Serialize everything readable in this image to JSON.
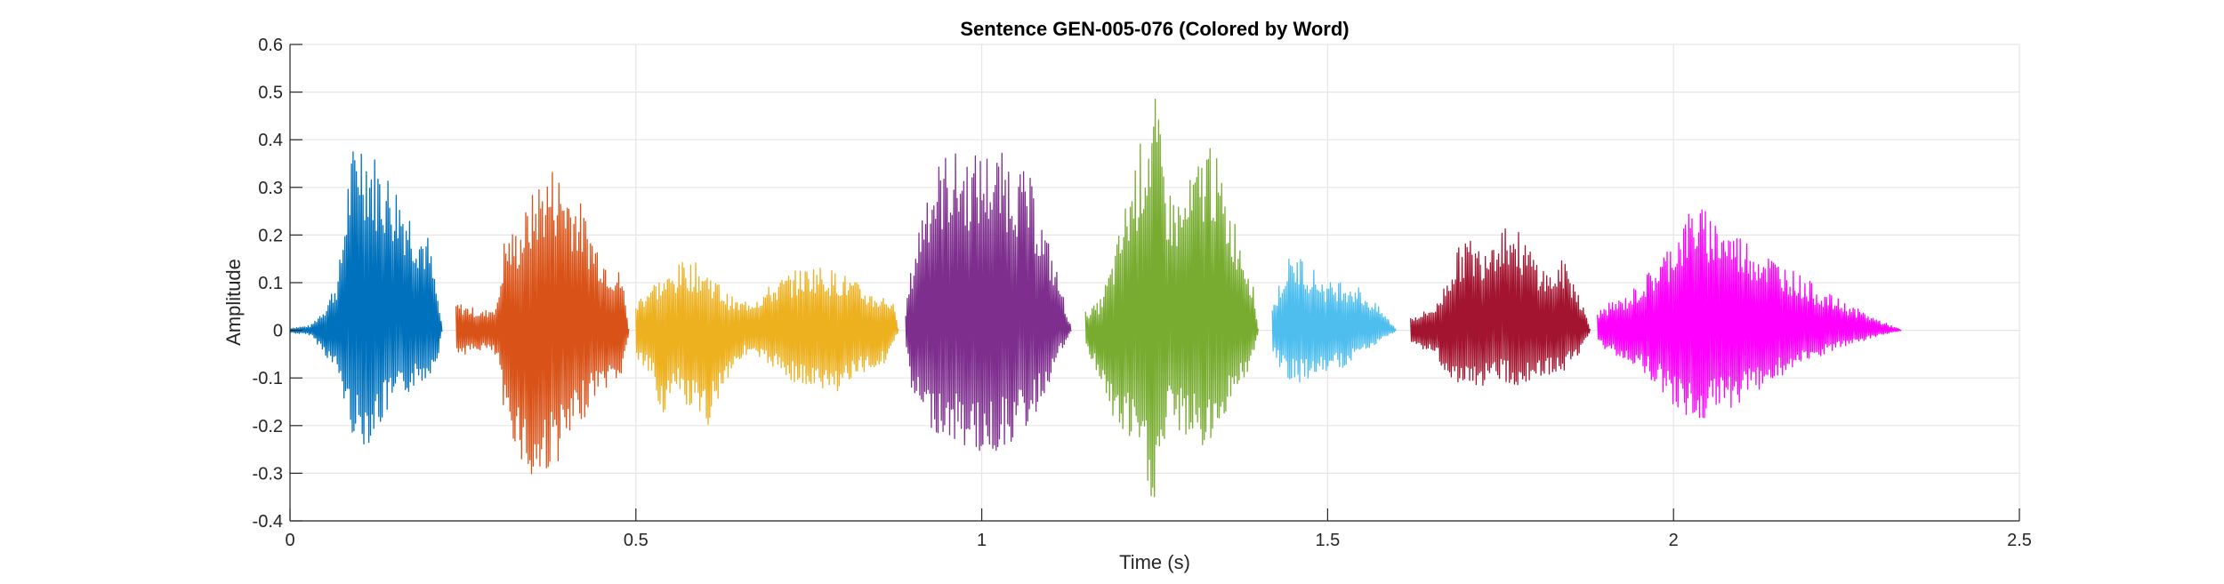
{
  "chart_data": {
    "type": "line",
    "title": "Sentence GEN-005-076 (Colored by Word)",
    "xlabel": "Time (s)",
    "ylabel": "Amplitude",
    "xlim": [
      0,
      2.5
    ],
    "ylim": [
      -0.4,
      0.6
    ],
    "xticks": [
      0,
      0.5,
      1,
      1.5,
      2,
      2.5
    ],
    "xtick_labels": [
      "0",
      "0.5",
      "1",
      "1.5",
      "2",
      "2.5"
    ],
    "yticks": [
      -0.4,
      -0.3,
      -0.2,
      -0.1,
      0,
      0.1,
      0.2,
      0.3,
      0.4,
      0.5,
      0.6
    ],
    "ytick_labels": [
      "-0.4",
      "-0.3",
      "-0.2",
      "-0.1",
      "0",
      "0.1",
      "0.2",
      "0.3",
      "0.4",
      "0.5",
      "0.6"
    ],
    "grid": true,
    "series": [
      {
        "color": "#0072BD",
        "t_start": 0.0,
        "t_end": 0.22,
        "envelope": [
          [
            0.0,
            0.005
          ],
          [
            0.03,
            0.01
          ],
          [
            0.05,
            0.05
          ],
          [
            0.07,
            0.12
          ],
          [
            0.085,
            0.35
          ],
          [
            0.1,
            0.44
          ],
          [
            0.12,
            0.38
          ],
          [
            0.14,
            0.34
          ],
          [
            0.16,
            0.3
          ],
          [
            0.18,
            0.24
          ],
          [
            0.2,
            0.2
          ],
          [
            0.215,
            0.06
          ],
          [
            0.22,
            0.0
          ]
        ],
        "envelope_neg": [
          [
            0.0,
            0.005
          ],
          [
            0.03,
            0.01
          ],
          [
            0.05,
            0.05
          ],
          [
            0.07,
            0.1
          ],
          [
            0.085,
            0.2
          ],
          [
            0.1,
            0.25
          ],
          [
            0.12,
            0.23
          ],
          [
            0.14,
            0.18
          ],
          [
            0.16,
            0.15
          ],
          [
            0.18,
            0.12
          ],
          [
            0.2,
            0.1
          ],
          [
            0.215,
            0.05
          ],
          [
            0.22,
            0.0
          ]
        ]
      },
      {
        "color": "#D95319",
        "t_start": 0.24,
        "t_end": 0.49,
        "envelope": [
          [
            0.24,
            0.06
          ],
          [
            0.26,
            0.05
          ],
          [
            0.28,
            0.04
          ],
          [
            0.3,
            0.06
          ],
          [
            0.31,
            0.2
          ],
          [
            0.33,
            0.22
          ],
          [
            0.36,
            0.32
          ],
          [
            0.38,
            0.35
          ],
          [
            0.4,
            0.32
          ],
          [
            0.42,
            0.27
          ],
          [
            0.44,
            0.2
          ],
          [
            0.46,
            0.15
          ],
          [
            0.48,
            0.12
          ],
          [
            0.49,
            0.0
          ]
        ],
        "envelope_neg": [
          [
            0.24,
            0.05
          ],
          [
            0.26,
            0.05
          ],
          [
            0.28,
            0.04
          ],
          [
            0.3,
            0.06
          ],
          [
            0.31,
            0.2
          ],
          [
            0.33,
            0.25
          ],
          [
            0.35,
            0.35
          ],
          [
            0.37,
            0.3
          ],
          [
            0.4,
            0.26
          ],
          [
            0.42,
            0.2
          ],
          [
            0.44,
            0.14
          ],
          [
            0.46,
            0.12
          ],
          [
            0.48,
            0.1
          ],
          [
            0.49,
            0.0
          ]
        ]
      },
      {
        "color": "#EDB120",
        "t_start": 0.5,
        "t_end": 0.88,
        "envelope": [
          [
            0.5,
            0.06
          ],
          [
            0.52,
            0.1
          ],
          [
            0.55,
            0.12
          ],
          [
            0.57,
            0.15
          ],
          [
            0.59,
            0.14
          ],
          [
            0.61,
            0.12
          ],
          [
            0.63,
            0.08
          ],
          [
            0.65,
            0.06
          ],
          [
            0.68,
            0.08
          ],
          [
            0.72,
            0.12
          ],
          [
            0.76,
            0.14
          ],
          [
            0.8,
            0.12
          ],
          [
            0.84,
            0.08
          ],
          [
            0.87,
            0.07
          ],
          [
            0.88,
            0.0
          ]
        ],
        "envelope_neg": [
          [
            0.5,
            0.06
          ],
          [
            0.52,
            0.1
          ],
          [
            0.54,
            0.18
          ],
          [
            0.56,
            0.14
          ],
          [
            0.6,
            0.22
          ],
          [
            0.62,
            0.14
          ],
          [
            0.64,
            0.08
          ],
          [
            0.66,
            0.05
          ],
          [
            0.7,
            0.08
          ],
          [
            0.74,
            0.12
          ],
          [
            0.78,
            0.14
          ],
          [
            0.82,
            0.1
          ],
          [
            0.86,
            0.07
          ],
          [
            0.88,
            0.0
          ]
        ]
      },
      {
        "color": "#7E2F8E",
        "t_start": 0.89,
        "t_end": 1.13,
        "envelope": [
          [
            0.89,
            0.05
          ],
          [
            0.9,
            0.15
          ],
          [
            0.92,
            0.32
          ],
          [
            0.95,
            0.38
          ],
          [
            0.98,
            0.37
          ],
          [
            1.01,
            0.38
          ],
          [
            1.04,
            0.37
          ],
          [
            1.07,
            0.32
          ],
          [
            1.09,
            0.22
          ],
          [
            1.11,
            0.12
          ],
          [
            1.13,
            0.0
          ]
        ],
        "envelope_neg": [
          [
            0.89,
            0.05
          ],
          [
            0.9,
            0.15
          ],
          [
            0.92,
            0.2
          ],
          [
            0.95,
            0.23
          ],
          [
            0.98,
            0.25
          ],
          [
            1.01,
            0.27
          ],
          [
            1.04,
            0.24
          ],
          [
            1.07,
            0.2
          ],
          [
            1.09,
            0.14
          ],
          [
            1.11,
            0.06
          ],
          [
            1.13,
            0.0
          ]
        ]
      },
      {
        "color": "#77AC30",
        "t_start": 1.15,
        "t_end": 1.4,
        "envelope": [
          [
            1.15,
            0.04
          ],
          [
            1.17,
            0.06
          ],
          [
            1.19,
            0.15
          ],
          [
            1.22,
            0.35
          ],
          [
            1.25,
            0.5
          ],
          [
            1.27,
            0.3
          ],
          [
            1.29,
            0.28
          ],
          [
            1.31,
            0.35
          ],
          [
            1.33,
            0.42
          ],
          [
            1.35,
            0.3
          ],
          [
            1.37,
            0.22
          ],
          [
            1.39,
            0.12
          ],
          [
            1.4,
            0.0
          ]
        ],
        "envelope_neg": [
          [
            1.15,
            0.04
          ],
          [
            1.17,
            0.1
          ],
          [
            1.19,
            0.2
          ],
          [
            1.22,
            0.25
          ],
          [
            1.25,
            0.38
          ],
          [
            1.27,
            0.2
          ],
          [
            1.29,
            0.22
          ],
          [
            1.31,
            0.24
          ],
          [
            1.33,
            0.26
          ],
          [
            1.35,
            0.18
          ],
          [
            1.37,
            0.12
          ],
          [
            1.39,
            0.08
          ],
          [
            1.4,
            0.0
          ]
        ]
      },
      {
        "color": "#4DBEEE",
        "t_start": 1.42,
        "t_end": 1.6,
        "envelope": [
          [
            1.42,
            0.05
          ],
          [
            1.44,
            0.15
          ],
          [
            1.46,
            0.16
          ],
          [
            1.48,
            0.13
          ],
          [
            1.5,
            0.1
          ],
          [
            1.52,
            0.11
          ],
          [
            1.54,
            0.1
          ],
          [
            1.56,
            0.07
          ],
          [
            1.58,
            0.04
          ],
          [
            1.6,
            0.0
          ]
        ],
        "envelope_neg": [
          [
            1.42,
            0.05
          ],
          [
            1.44,
            0.1
          ],
          [
            1.46,
            0.11
          ],
          [
            1.48,
            0.1
          ],
          [
            1.5,
            0.09
          ],
          [
            1.52,
            0.08
          ],
          [
            1.54,
            0.06
          ],
          [
            1.56,
            0.04
          ],
          [
            1.58,
            0.02
          ],
          [
            1.6,
            0.0
          ]
        ]
      },
      {
        "color": "#A2142F",
        "t_start": 1.62,
        "t_end": 1.88,
        "envelope": [
          [
            1.62,
            0.03
          ],
          [
            1.64,
            0.04
          ],
          [
            1.66,
            0.06
          ],
          [
            1.68,
            0.15
          ],
          [
            1.7,
            0.2
          ],
          [
            1.72,
            0.18
          ],
          [
            1.74,
            0.22
          ],
          [
            1.76,
            0.24
          ],
          [
            1.78,
            0.2
          ],
          [
            1.8,
            0.16
          ],
          [
            1.82,
            0.12
          ],
          [
            1.84,
            0.15
          ],
          [
            1.86,
            0.1
          ],
          [
            1.88,
            0.0
          ]
        ],
        "envelope_neg": [
          [
            1.62,
            0.03
          ],
          [
            1.64,
            0.04
          ],
          [
            1.66,
            0.06
          ],
          [
            1.68,
            0.12
          ],
          [
            1.7,
            0.13
          ],
          [
            1.72,
            0.12
          ],
          [
            1.74,
            0.1
          ],
          [
            1.76,
            0.11
          ],
          [
            1.78,
            0.12
          ],
          [
            1.8,
            0.1
          ],
          [
            1.82,
            0.1
          ],
          [
            1.84,
            0.09
          ],
          [
            1.86,
            0.06
          ],
          [
            1.88,
            0.0
          ]
        ]
      },
      {
        "color": "#FF00FF",
        "t_start": 1.89,
        "t_end": 2.33,
        "envelope": [
          [
            1.89,
            0.04
          ],
          [
            1.91,
            0.06
          ],
          [
            1.93,
            0.07
          ],
          [
            1.95,
            0.1
          ],
          [
            1.98,
            0.15
          ],
          [
            2.0,
            0.2
          ],
          [
            2.03,
            0.27
          ],
          [
            2.06,
            0.24
          ],
          [
            2.1,
            0.2
          ],
          [
            2.14,
            0.16
          ],
          [
            2.18,
            0.12
          ],
          [
            2.22,
            0.08
          ],
          [
            2.26,
            0.05
          ],
          [
            2.3,
            0.02
          ],
          [
            2.33,
            0.0
          ]
        ],
        "envelope_neg": [
          [
            1.89,
            0.03
          ],
          [
            1.91,
            0.05
          ],
          [
            1.93,
            0.06
          ],
          [
            1.95,
            0.08
          ],
          [
            1.98,
            0.12
          ],
          [
            2.0,
            0.16
          ],
          [
            2.03,
            0.2
          ],
          [
            2.06,
            0.18
          ],
          [
            2.1,
            0.15
          ],
          [
            2.14,
            0.11
          ],
          [
            2.18,
            0.08
          ],
          [
            2.22,
            0.05
          ],
          [
            2.26,
            0.03
          ],
          [
            2.3,
            0.01
          ],
          [
            2.33,
            0.0
          ]
        ]
      }
    ]
  }
}
